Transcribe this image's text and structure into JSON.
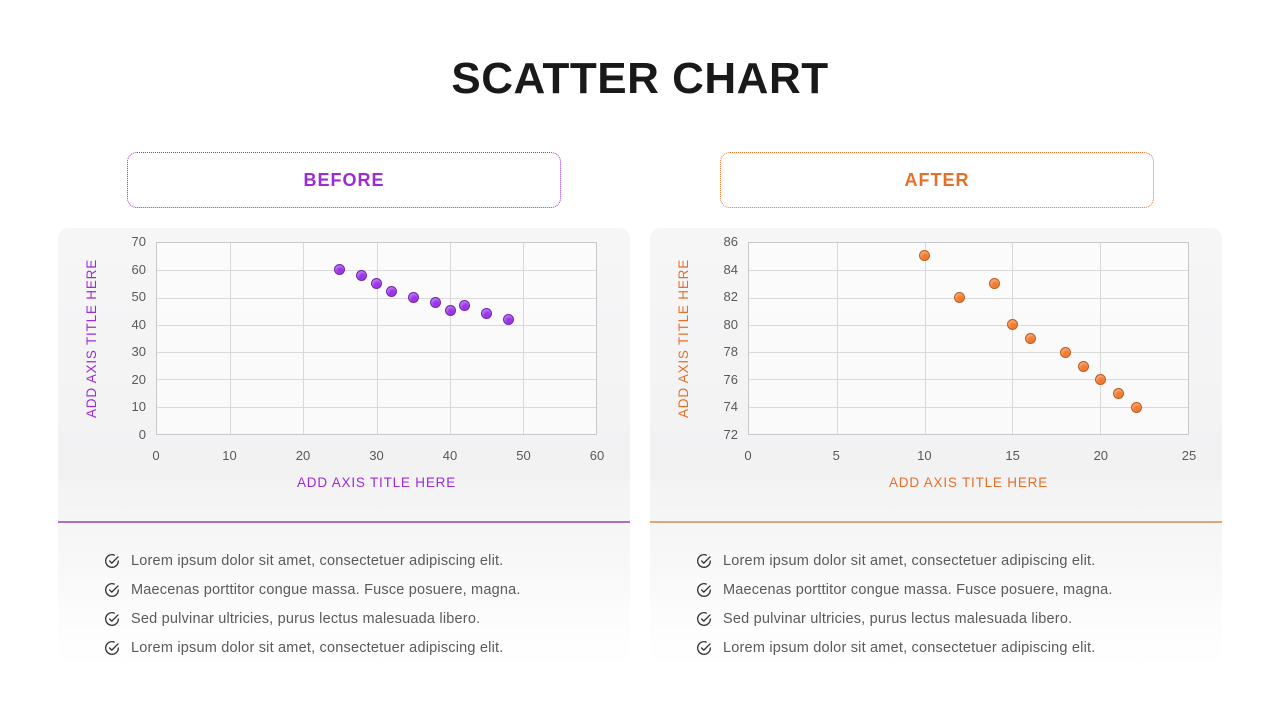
{
  "title": "SCATTER CHART",
  "panels": [
    {
      "label": "BEFORE",
      "accent": "#9C2BD9",
      "divider_color": "#B06CC4",
      "point_fill": "#9B35E8",
      "point_border": "#7326AE",
      "y_axis_title": "ADD AXIS TITLE HERE",
      "x_axis_title": "ADD AXIS TITLE HERE",
      "bullets": [
        "Lorem ipsum dolor sit amet, consectetuer adipiscing elit.",
        "Maecenas porttitor congue massa. Fusce posuere, magna.",
        "Sed pulvinar ultricies, purus lectus malesuada libero.",
        "Lorem ipsum dolor sit amet, consectetuer adipiscing elit."
      ]
    },
    {
      "label": "AFTER",
      "accent": "#E76F28",
      "divider_color": "#DDA877",
      "point_fill": "#F07C32",
      "point_border": "#BF5B1D",
      "y_axis_title": "ADD AXIS TITLE HERE",
      "x_axis_title": "ADD AXIS TITLE HERE",
      "bullets": [
        "Lorem ipsum dolor sit amet, consectetuer adipiscing elit.",
        "Maecenas porttitor congue massa. Fusce posuere, magna.",
        "Sed pulvinar ultricies, purus lectus malesuada libero.",
        "Lorem ipsum dolor sit amet, consectetuer adipiscing elit."
      ]
    }
  ],
  "chart_data": [
    {
      "type": "scatter",
      "title": "BEFORE",
      "xlabel": "ADD AXIS TITLE HERE",
      "ylabel": "ADD AXIS TITLE HERE",
      "xlim": [
        0,
        60
      ],
      "ylim": [
        0,
        70
      ],
      "xtick_step": 10,
      "ytick_step": 10,
      "grid": true,
      "legend": false,
      "series": [
        {
          "name": "BEFORE",
          "color": "#9B35E8",
          "points": [
            [
              25,
              60
            ],
            [
              28,
              58
            ],
            [
              30,
              55
            ],
            [
              32,
              52
            ],
            [
              35,
              50
            ],
            [
              38,
              48
            ],
            [
              40,
              45
            ],
            [
              42,
              47
            ],
            [
              45,
              44
            ],
            [
              48,
              42
            ]
          ]
        }
      ]
    },
    {
      "type": "scatter",
      "title": "AFTER",
      "xlabel": "ADD AXIS TITLE HERE",
      "ylabel": "ADD AXIS TITLE HERE",
      "xlim": [
        0,
        25
      ],
      "ylim": [
        72,
        86
      ],
      "xtick_step": 5,
      "ytick_step": 2,
      "grid": true,
      "legend": false,
      "series": [
        {
          "name": "AFTER",
          "color": "#F07C32",
          "points": [
            [
              10,
              85
            ],
            [
              12,
              82
            ],
            [
              14,
              83
            ],
            [
              15,
              80
            ],
            [
              16,
              79
            ],
            [
              18,
              78
            ],
            [
              19,
              77
            ],
            [
              20,
              76
            ],
            [
              21,
              75
            ],
            [
              22,
              74
            ]
          ]
        }
      ]
    }
  ]
}
